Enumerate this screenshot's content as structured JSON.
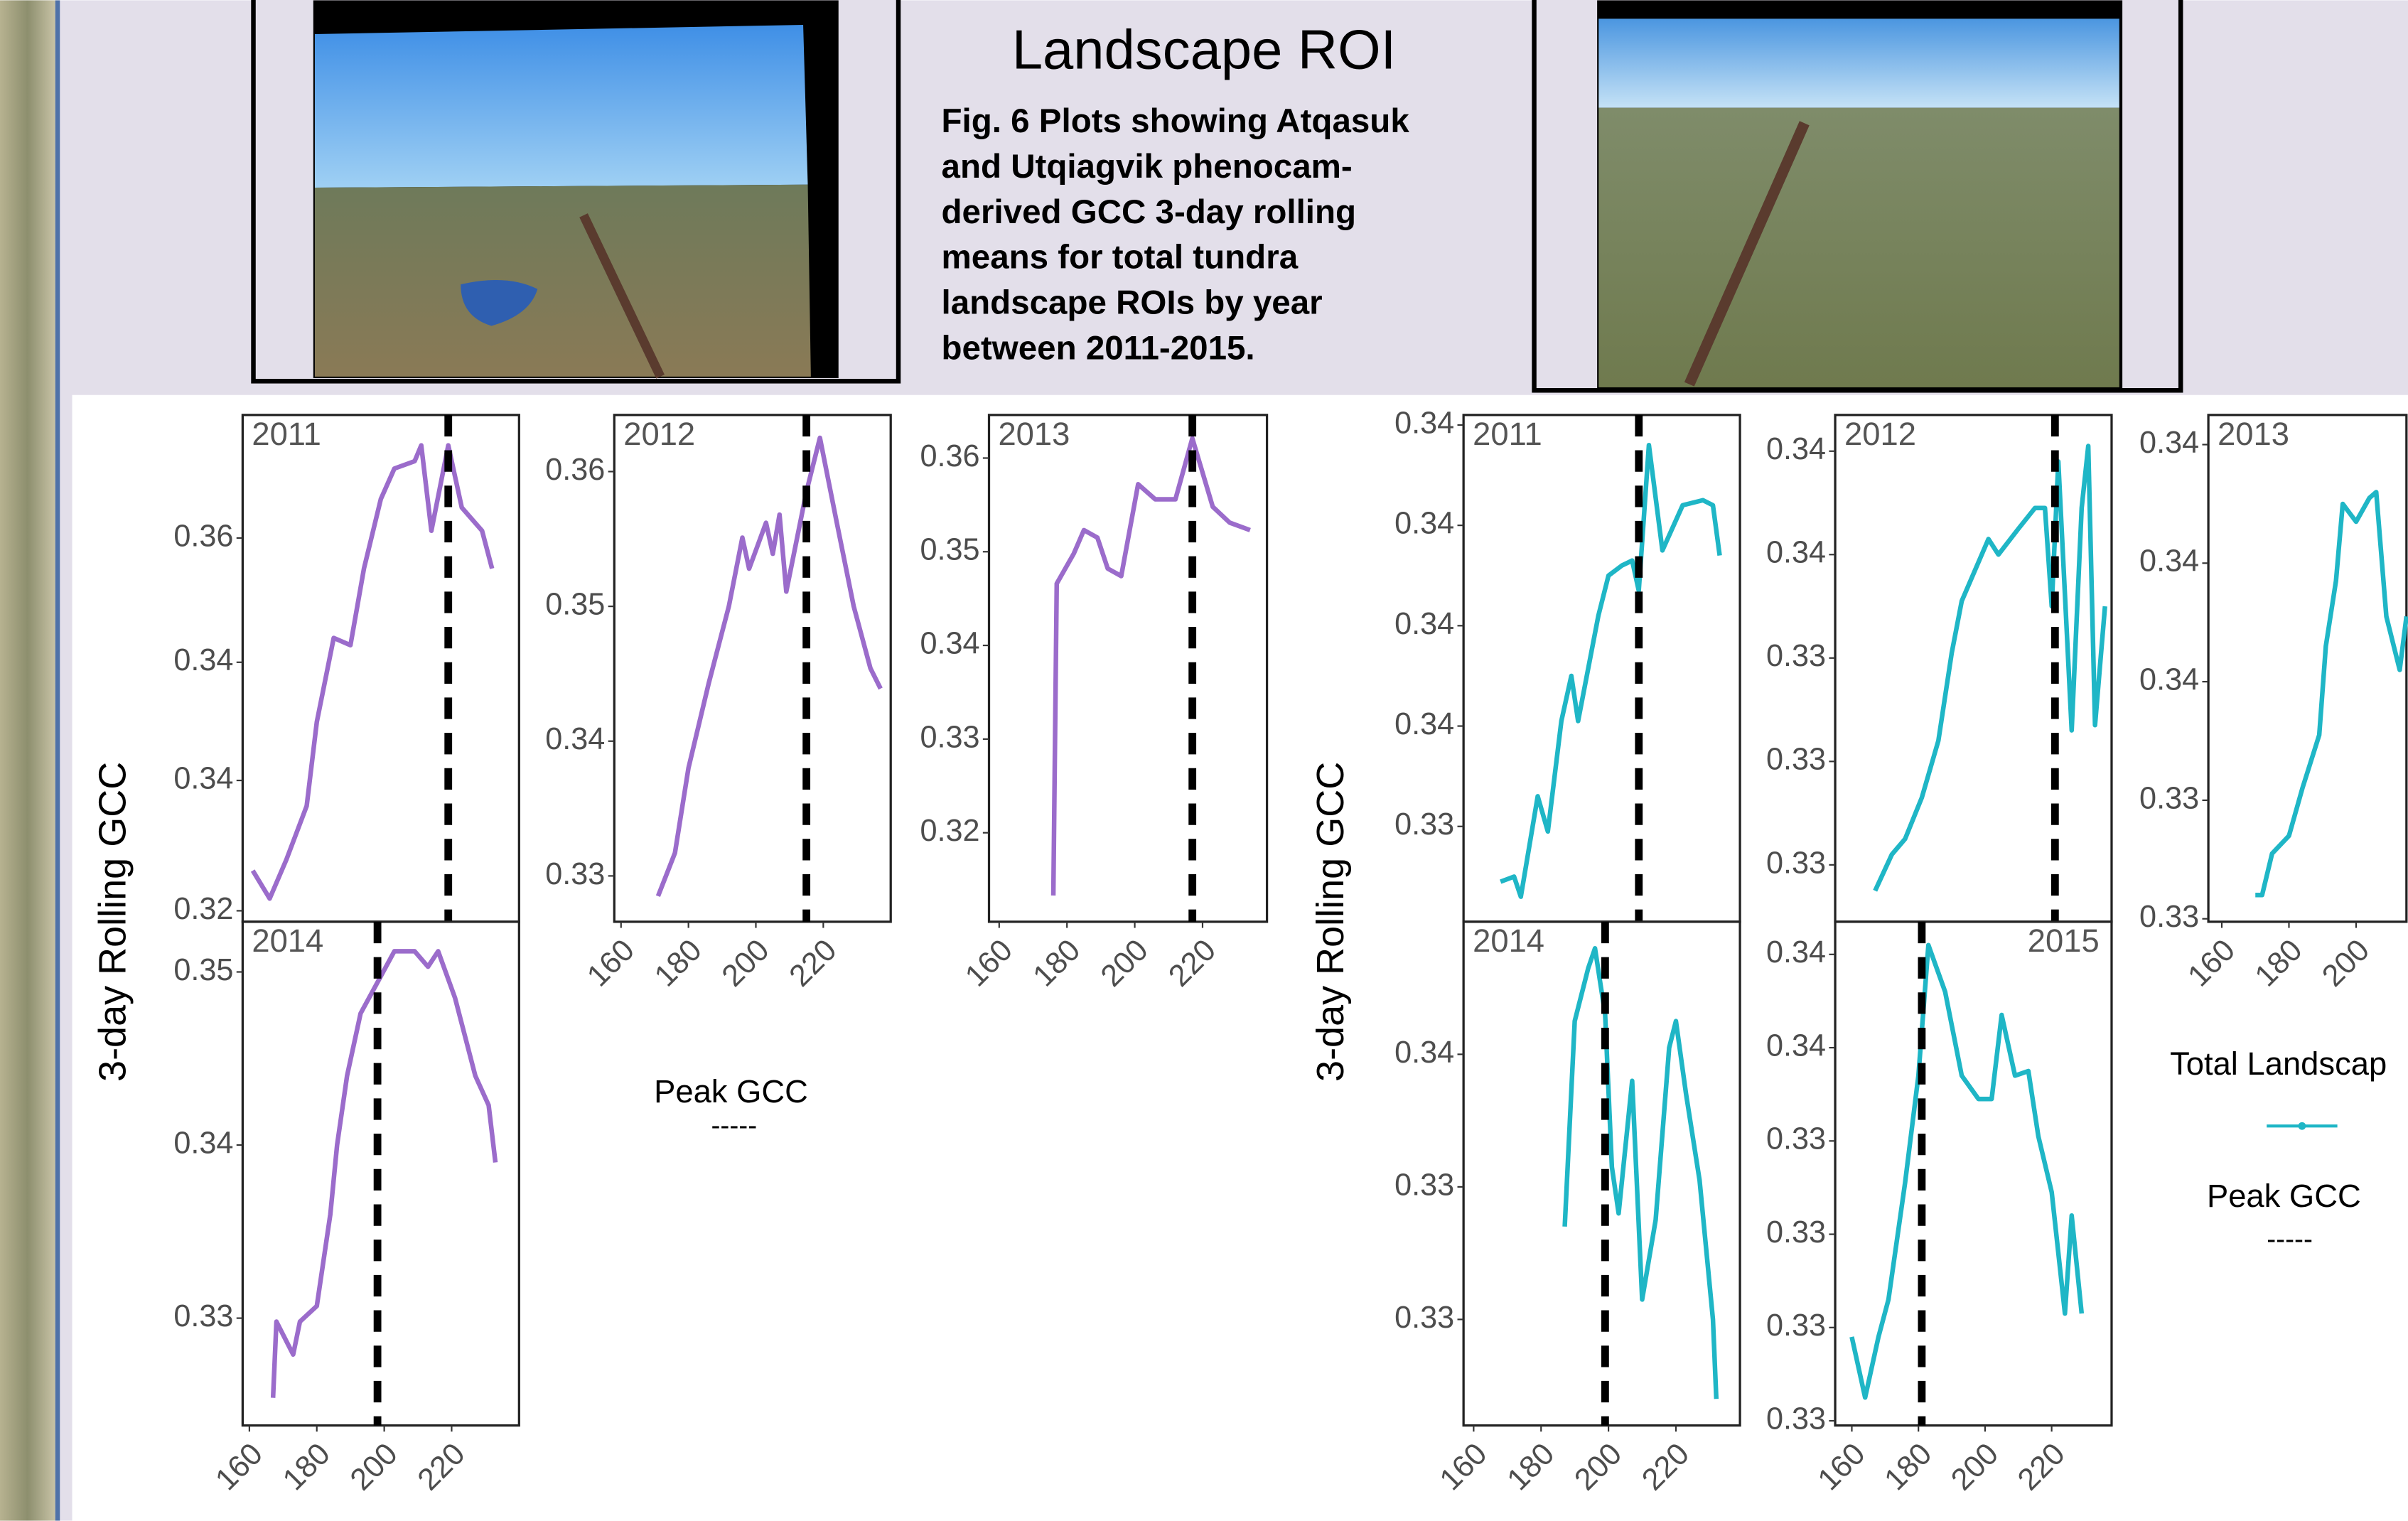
{
  "title": "Landscape ROI",
  "caption": [
    "Fig. 6 Plots showing Atqasuk",
    "and Utqiagvik phenocam-",
    "derived GCC 3-day rolling",
    "means for total tundra",
    "landscape ROIs by year",
    "between 2011-2015."
  ],
  "y_axis_titles": [
    "3-day Rolling GCC",
    "3-day Rolling GCC"
  ],
  "legends": [
    {
      "title": "Peak GCC",
      "symbol": "-----"
    },
    {
      "title": "Total Landscap"
    },
    {
      "title": "Peak GCC",
      "symbol": "-----"
    }
  ],
  "chart_data": [
    {
      "type": "line",
      "title": "2011",
      "color": "#9b6ccb",
      "peak": 219,
      "xlim": [
        158,
        240
      ],
      "ylim": [
        0.3236,
        0.3652
      ],
      "yticks": [
        {
          "value": 0.3245,
          "label": "0.32"
        },
        {
          "value": 0.3352,
          "label": "0.34"
        },
        {
          "value": 0.3449,
          "label": "0.34"
        },
        {
          "value": 0.3551,
          "label": "0.36"
        }
      ],
      "x": [
        161,
        166,
        171,
        177,
        180,
        185,
        190,
        194,
        199,
        203,
        209,
        211,
        214,
        219,
        223,
        229,
        232
      ],
      "values": [
        0.3278,
        0.3255,
        0.3287,
        0.3331,
        0.34,
        0.3469,
        0.3463,
        0.3526,
        0.3583,
        0.3608,
        0.3614,
        0.3627,
        0.3557,
        0.3627,
        0.3576,
        0.3557,
        0.3526
      ]
    },
    {
      "type": "line",
      "title": "2012",
      "color": "#9b6ccb",
      "peak": 215,
      "xlim": [
        158,
        240
      ],
      "ylim": [
        0.3266,
        0.3642
      ],
      "yticks": [
        0.33,
        0.34,
        0.35,
        0.36
      ],
      "xticks": [
        160,
        180,
        200,
        220
      ],
      "x": [
        171,
        176,
        180,
        186,
        192,
        196,
        198,
        203,
        205,
        207,
        209,
        215,
        219,
        224,
        229,
        234,
        237
      ],
      "values": [
        0.3285,
        0.3317,
        0.338,
        0.3443,
        0.35,
        0.3551,
        0.3528,
        0.3562,
        0.3539,
        0.3568,
        0.3511,
        0.3585,
        0.3625,
        0.3562,
        0.35,
        0.3454,
        0.3439
      ]
    },
    {
      "type": "line",
      "title": "2013",
      "color": "#9b6ccb",
      "peak": 217,
      "xlim": [
        157,
        239
      ],
      "ylim": [
        0.3105,
        0.3646
      ],
      "yticks": [
        0.32,
        0.33,
        0.34,
        0.35,
        0.36
      ],
      "xticks": [
        160,
        180,
        200,
        220
      ],
      "x": [
        176,
        177,
        182,
        185,
        189,
        192,
        196,
        201,
        206,
        212,
        217,
        223,
        228,
        234
      ],
      "values": [
        0.3133,
        0.3466,
        0.3498,
        0.3523,
        0.3515,
        0.3482,
        0.3474,
        0.3572,
        0.3556,
        0.3556,
        0.3621,
        0.3548,
        0.3531,
        0.3523
      ]
    },
    {
      "type": "line",
      "title": "2014",
      "color": "#9b6ccb",
      "peak": 198,
      "xlim": [
        158,
        240
      ],
      "ylim": [
        0.3238,
        0.3529
      ],
      "yticks": [
        0.33,
        0.34,
        0.35
      ],
      "xticks": [
        160,
        180,
        200,
        220
      ],
      "x": [
        167,
        168,
        173,
        175,
        180,
        184,
        186,
        189,
        193,
        198,
        203,
        209,
        213,
        216,
        221,
        227,
        231,
        233
      ],
      "values": [
        0.3254,
        0.3298,
        0.3279,
        0.3298,
        0.3307,
        0.336,
        0.34,
        0.344,
        0.3476,
        0.3494,
        0.3512,
        0.3512,
        0.3503,
        0.3512,
        0.3485,
        0.344,
        0.3423,
        0.339
      ]
    },
    {
      "type": "line",
      "title": "2011",
      "color": "#1fb6c6",
      "peak": 209,
      "xlim": [
        157,
        239
      ],
      "ylim": [
        0.3321,
        0.3422
      ],
      "yticks": [
        {
          "value": 0.334,
          "label": "0.33"
        },
        {
          "value": 0.336,
          "label": "0.34"
        },
        {
          "value": 0.338,
          "label": "0.34"
        },
        0.34,
        {
          "value": 0.342,
          "label": "0.34"
        }
      ],
      "x": [
        168,
        172,
        174,
        179,
        182,
        186,
        189,
        191,
        197,
        200,
        204,
        207,
        209,
        212,
        216,
        222,
        228,
        231,
        233
      ],
      "values": [
        0.3329,
        0.333,
        0.3326,
        0.3346,
        0.3339,
        0.3361,
        0.337,
        0.3361,
        0.3382,
        0.339,
        0.3392,
        0.3393,
        0.3387,
        0.3416,
        0.3395,
        0.3404,
        0.3405,
        0.3404,
        0.3394
      ]
    },
    {
      "type": "line",
      "title": "2012",
      "color": "#1fb6c6",
      "peak": 221,
      "xlim": [
        155,
        238
      ],
      "ylim": [
        0.3281,
        0.3379
      ],
      "yticks": [
        {
          "value": 0.3292,
          "label": "0.33"
        },
        {
          "value": 0.3312,
          "label": "0.33"
        },
        {
          "value": 0.3332,
          "label": "0.33"
        },
        {
          "value": 0.3352,
          "label": "0.34"
        },
        {
          "value": 0.3372,
          "label": "0.34"
        }
      ],
      "x": [
        167,
        172,
        176,
        181,
        186,
        190,
        193,
        197,
        201,
        204,
        210,
        215,
        218,
        220,
        222,
        226,
        229,
        231,
        233,
        236
      ],
      "values": [
        0.3287,
        0.3294,
        0.3297,
        0.3305,
        0.3316,
        0.3333,
        0.3343,
        0.3349,
        0.3355,
        0.3352,
        0.3357,
        0.3361,
        0.3361,
        0.3342,
        0.337,
        0.3318,
        0.3361,
        0.3373,
        0.3319,
        0.3342
      ]
    },
    {
      "type": "line",
      "title": "2013",
      "color": "#1fb6c6",
      "xlim": [
        156,
        215
      ],
      "ylim": [
        0.33155,
        0.3401
      ],
      "yticks": [
        {
          "value": 0.3316,
          "label": "0.33"
        },
        {
          "value": 0.3336,
          "label": "0.33"
        },
        {
          "value": 0.3356,
          "label": "0.34"
        },
        {
          "value": 0.3376,
          "label": "0.34"
        },
        {
          "value": 0.3396,
          "label": "0.34"
        }
      ],
      "xticks": [
        160,
        180,
        200
      ],
      "x": [
        170,
        172,
        175,
        180,
        184,
        189,
        191,
        194,
        196,
        200,
        204,
        206,
        209,
        213,
        215
      ],
      "values": [
        0.332,
        0.332,
        0.3327,
        0.333,
        0.3338,
        0.3347,
        0.3362,
        0.3373,
        0.3386,
        0.3383,
        0.3387,
        0.3388,
        0.3367,
        0.3358,
        0.3367
      ]
    },
    {
      "type": "line",
      "title": "2014",
      "color": "#1fb6c6",
      "peak": 199,
      "xlim": [
        157,
        239
      ],
      "ylim": [
        0.33,
        0.3376
      ],
      "yticks": [
        {
          "value": 0.3316,
          "label": "0.33"
        },
        {
          "value": 0.3336,
          "label": "0.33"
        },
        {
          "value": 0.3356,
          "label": "0.34"
        }
      ],
      "xticks": [
        160,
        180,
        200,
        220
      ],
      "x": [
        187,
        190,
        194,
        196,
        199,
        201,
        203,
        207,
        210,
        214,
        218,
        220,
        223,
        227,
        231,
        232
      ],
      "values": [
        0.333,
        0.3361,
        0.3369,
        0.3372,
        0.3362,
        0.3339,
        0.3332,
        0.3352,
        0.3319,
        0.3331,
        0.3357,
        0.3361,
        0.335,
        0.3337,
        0.3316,
        0.3304
      ]
    },
    {
      "type": "line",
      "title": "2015",
      "color": "#1fb6c6",
      "peak": 181,
      "xlim": [
        155,
        238
      ],
      "ylim": [
        0.3275,
        0.3383
      ],
      "yticks": [
        {
          "value": 0.3276,
          "label": "0.33"
        },
        {
          "value": 0.3296,
          "label": "0.33"
        },
        {
          "value": 0.3316,
          "label": "0.33"
        },
        {
          "value": 0.3336,
          "label": "0.33"
        },
        {
          "value": 0.3356,
          "label": "0.34"
        },
        {
          "value": 0.3376,
          "label": "0.34"
        }
      ],
      "xticks": [
        160,
        180,
        200,
        220
      ],
      "x": [
        160,
        164,
        168,
        171,
        176,
        180,
        183,
        188,
        193,
        198,
        202,
        205,
        209,
        213,
        216,
        220,
        224,
        226,
        229
      ],
      "values": [
        0.3294,
        0.3281,
        0.3294,
        0.3302,
        0.3327,
        0.335,
        0.3378,
        0.3368,
        0.335,
        0.3345,
        0.3345,
        0.3363,
        0.335,
        0.3351,
        0.3337,
        0.3325,
        0.3299,
        0.332,
        0.3299
      ]
    }
  ]
}
